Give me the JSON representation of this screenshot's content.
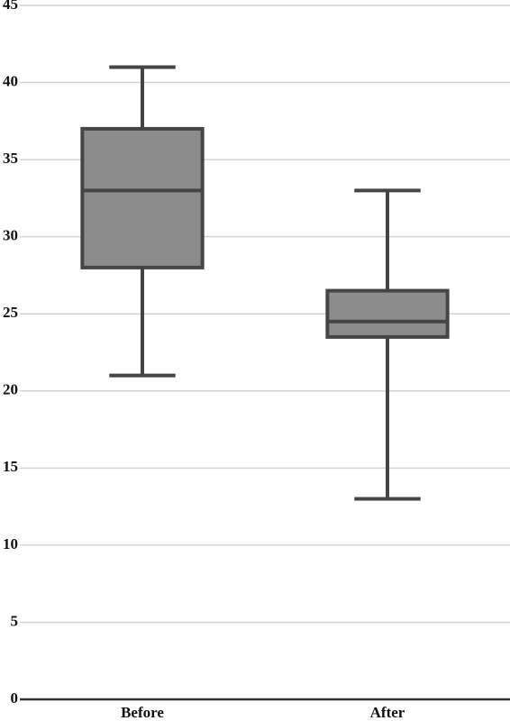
{
  "chart_data": {
    "type": "box",
    "categories": [
      "Before",
      "After"
    ],
    "stats": [
      {
        "min": 21,
        "q1": 28,
        "median": 33,
        "q3": 37,
        "max": 41
      },
      {
        "min": 13,
        "q1": 23.5,
        "median": 24.5,
        "q3": 26.5,
        "max": 33
      }
    ],
    "color": "#8c8c8c",
    "edge_color": "#454545",
    "ylim": [
      0,
      45
    ],
    "yticks": [
      0,
      5,
      10,
      15,
      20,
      25,
      30,
      35,
      40,
      45
    ],
    "grid": true
  }
}
